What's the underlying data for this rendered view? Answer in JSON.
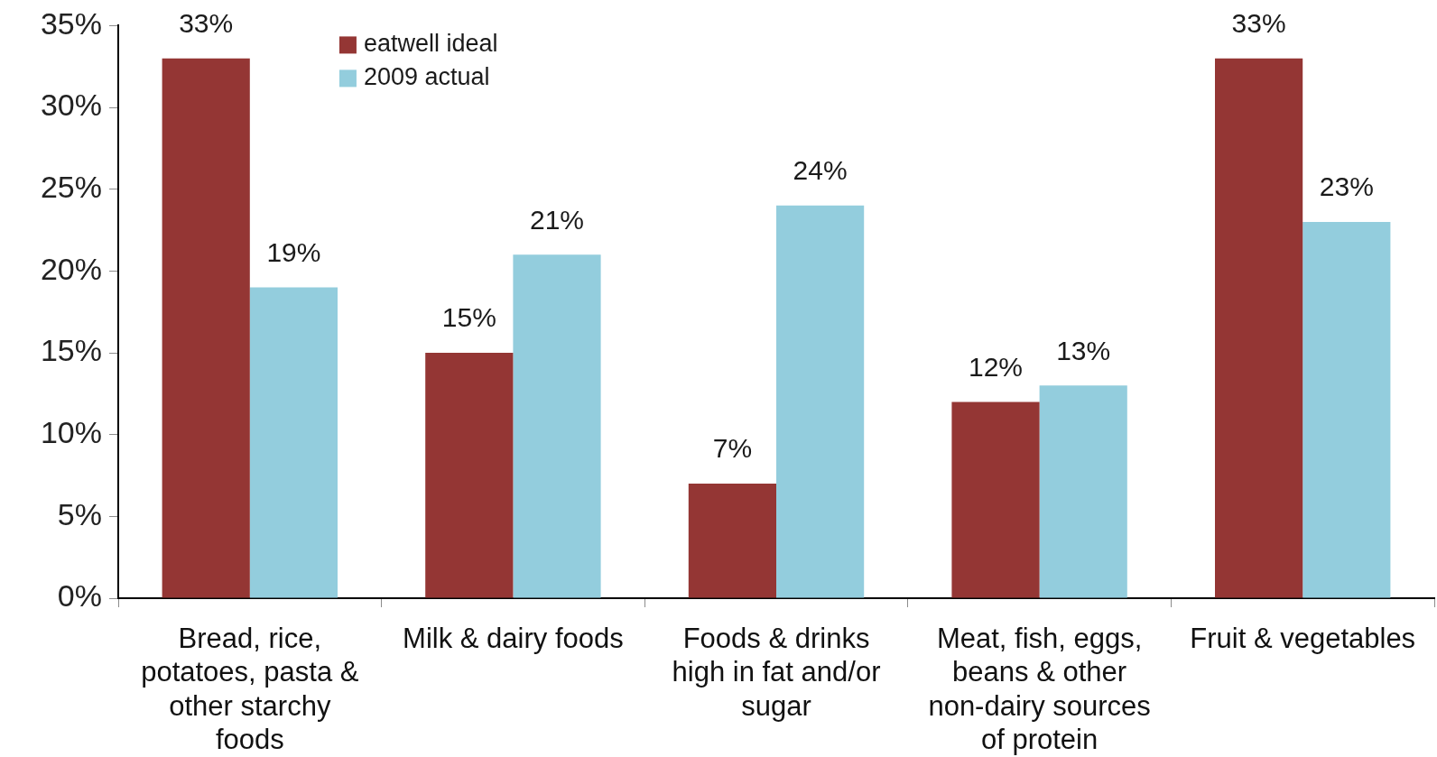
{
  "chart_data": {
    "type": "bar",
    "categories": [
      "Bread, rice, potatoes, pasta & other starchy foods",
      "Milk & dairy foods",
      "Foods & drinks high in fat and/or sugar",
      "Meat, fish, eggs, beans & other non-dairy sources of protein",
      "Fruit & vegetables"
    ],
    "series": [
      {
        "name": "eatwell ideal",
        "color": "#943634",
        "values": [
          33,
          15,
          7,
          12,
          33
        ],
        "value_labels": [
          "33%",
          "15%",
          "7%",
          "12%",
          "33%"
        ]
      },
      {
        "name": "2009 actual",
        "color": "#93cddd",
        "values": [
          19,
          21,
          24,
          13,
          23
        ],
        "value_labels": [
          "19%",
          "21%",
          "24%",
          "13%",
          "23%"
        ]
      }
    ],
    "ylim": [
      0,
      35
    ],
    "yticks": [
      {
        "value": 0,
        "label": "0%"
      },
      {
        "value": 5,
        "label": "5%"
      },
      {
        "value": 10,
        "label": "10%"
      },
      {
        "value": 15,
        "label": "15%"
      },
      {
        "value": 20,
        "label": "20%"
      },
      {
        "value": 25,
        "label": "25%"
      },
      {
        "value": 30,
        "label": "30%"
      },
      {
        "value": 35,
        "label": "35%"
      }
    ],
    "legend": "top left"
  }
}
